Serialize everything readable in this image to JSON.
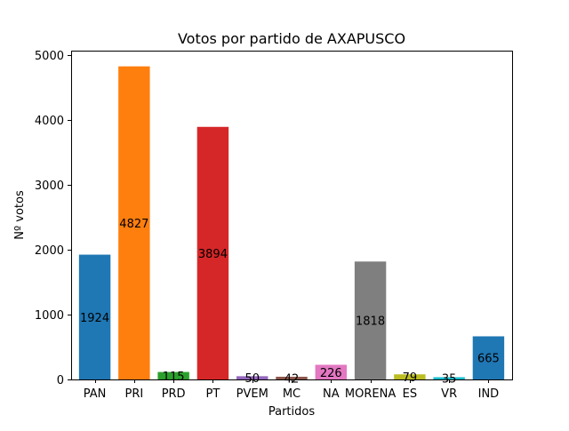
{
  "chart_data": {
    "type": "bar",
    "title": "Votos por partido de AXAPUSCO",
    "xlabel": "Partidos",
    "ylabel": "Nº votos",
    "categories": [
      "PAN",
      "PRI",
      "PRD",
      "PT",
      "PVEM",
      "MC",
      "NA",
      "MORENA",
      "ES",
      "VR",
      "IND"
    ],
    "values": [
      1924,
      4827,
      115,
      3894,
      50,
      42,
      226,
      1818,
      79,
      35,
      665
    ],
    "data_labels": [
      "1924",
      "4827",
      "115",
      "3894",
      "50",
      "42",
      "226",
      "1818",
      "79",
      "35",
      "665"
    ],
    "colors": [
      "#1f77b4",
      "#ff7f0e",
      "#2ca02c",
      "#d62728",
      "#9467bd",
      "#8c564b",
      "#e377c2",
      "#7f7f7f",
      "#bcbd22",
      "#17becf",
      "#1f77b4"
    ],
    "ylim": [
      0,
      5069
    ],
    "yticks": [
      0,
      1000,
      2000,
      3000,
      4000,
      5000
    ],
    "ytick_labels": [
      "0",
      "1000",
      "2000",
      "3000",
      "4000",
      "5000"
    ],
    "grid": false,
    "legend": "none"
  }
}
